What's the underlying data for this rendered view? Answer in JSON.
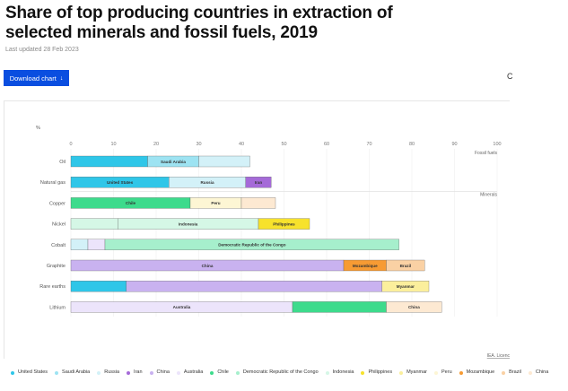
{
  "header": {
    "title": "Share of top producing countries in extraction of selected minerals and fossil fuels, 2019",
    "updated": "Last updated 28 Feb 2023",
    "download_label": "Download chart",
    "download_arrow": "↓",
    "edge_glyph": "C"
  },
  "colors": {
    "United States": "#2fc6e8",
    "Saudi Arabia": "#9de3f2",
    "Russia": "#d3f1f8",
    "Iran": "#a56ad8",
    "China": "#c9b2f0",
    "Australia": "#ece4fb",
    "Chile": "#3ddb8c",
    "Democratic Republic of the Congo": "#a6efcc",
    "Indonesia": "#d5f7e6",
    "Philippines": "#f7e22c",
    "Myanmar": "#fbef9c",
    "Peru": "#fdf6d4",
    "Mozambique": "#f79b33",
    "Brazil": "#fad1a4",
    "China ": "#fde9d2"
  },
  "chart_data": {
    "type": "bar",
    "orientation": "horizontal",
    "stacked": true,
    "ylabel": "%",
    "xlim": [
      0,
      100
    ],
    "ticks": [
      0,
      10,
      20,
      30,
      40,
      50,
      60,
      70,
      80,
      90,
      100
    ],
    "groups": [
      {
        "label": "Fossil fuels",
        "start": 0
      },
      {
        "label": "Minerals",
        "start": 2
      }
    ],
    "categories": [
      "Oil",
      "Natural gas",
      "Copper",
      "Nickel",
      "Cobalt",
      "Graphite",
      "Rare earths",
      "Lithium"
    ],
    "rows": [
      {
        "category": "Oil",
        "segments": [
          {
            "country": "United States",
            "value": 18
          },
          {
            "country": "Saudi Arabia",
            "value": 12,
            "label": "Saudi Arabia"
          },
          {
            "country": "Russia",
            "value": 12
          }
        ]
      },
      {
        "category": "Natural gas",
        "segments": [
          {
            "country": "United States",
            "value": 23,
            "label": "United States"
          },
          {
            "country": "Russia",
            "value": 18,
            "label": "Russia"
          },
          {
            "country": "Iran",
            "value": 6,
            "label": "Iran"
          }
        ]
      },
      {
        "category": "Copper",
        "segments": [
          {
            "country": "Chile",
            "value": 28,
            "label": "Chile"
          },
          {
            "country": "Peru",
            "value": 12,
            "label": "Peru"
          },
          {
            "country": "China ",
            "value": 8
          }
        ]
      },
      {
        "category": "Nickel",
        "segments": [
          {
            "country": "Indonesia",
            "value": 11
          },
          {
            "country": "Indonesia",
            "value": 33,
            "label": "Indonesia"
          },
          {
            "country": "Philippines",
            "value": 12,
            "label": "Philippines"
          }
        ]
      },
      {
        "category": "Cobalt",
        "segments": [
          {
            "country": "Russia",
            "value": 4
          },
          {
            "country": "Australia",
            "value": 4
          },
          {
            "country": "Democratic Republic of the Congo",
            "value": 69,
            "label": "Democratic Republic of the Congo"
          }
        ]
      },
      {
        "category": "Graphite",
        "segments": [
          {
            "country": "China",
            "value": 64,
            "label": "China"
          },
          {
            "country": "Mozambique",
            "value": 10,
            "label": "Mozambique"
          },
          {
            "country": "Brazil",
            "value": 9,
            "label": "Brazil"
          }
        ]
      },
      {
        "category": "Rare earths",
        "segments": [
          {
            "country": "United States",
            "value": 13
          },
          {
            "country": "China",
            "value": 60
          },
          {
            "country": "Myanmar",
            "value": 11,
            "label": "Myanmar"
          }
        ]
      },
      {
        "category": "Lithium",
        "segments": [
          {
            "country": "Australia",
            "value": 52,
            "label": "Australia"
          },
          {
            "country": "Chile",
            "value": 22
          },
          {
            "country": "China ",
            "value": 13,
            "label": "China"
          }
        ]
      }
    ],
    "source_link": "IEA. Licenc",
    "legend_position": "bottom",
    "legend": [
      {
        "label": "United States",
        "key": "United States"
      },
      {
        "label": "Saudi Arabia",
        "key": "Saudi Arabia"
      },
      {
        "label": "Russia",
        "key": "Russia"
      },
      {
        "label": "Iran",
        "key": "Iran"
      },
      {
        "label": "China",
        "key": "China"
      },
      {
        "label": "Australia",
        "key": "Australia"
      },
      {
        "label": "Chile",
        "key": "Chile"
      },
      {
        "label": "Democratic Republic of the Congo",
        "key": "Democratic Republic of the Congo"
      },
      {
        "label": "Indonesia",
        "key": "Indonesia"
      },
      {
        "label": "Philippines",
        "key": "Philippines"
      },
      {
        "label": "Myanmar",
        "key": "Myanmar"
      },
      {
        "label": "Peru",
        "key": "Peru"
      },
      {
        "label": "Mozambique",
        "key": "Mozambique"
      },
      {
        "label": "Brazil",
        "key": "Brazil"
      },
      {
        "label": "China",
        "key": "China "
      }
    ]
  }
}
